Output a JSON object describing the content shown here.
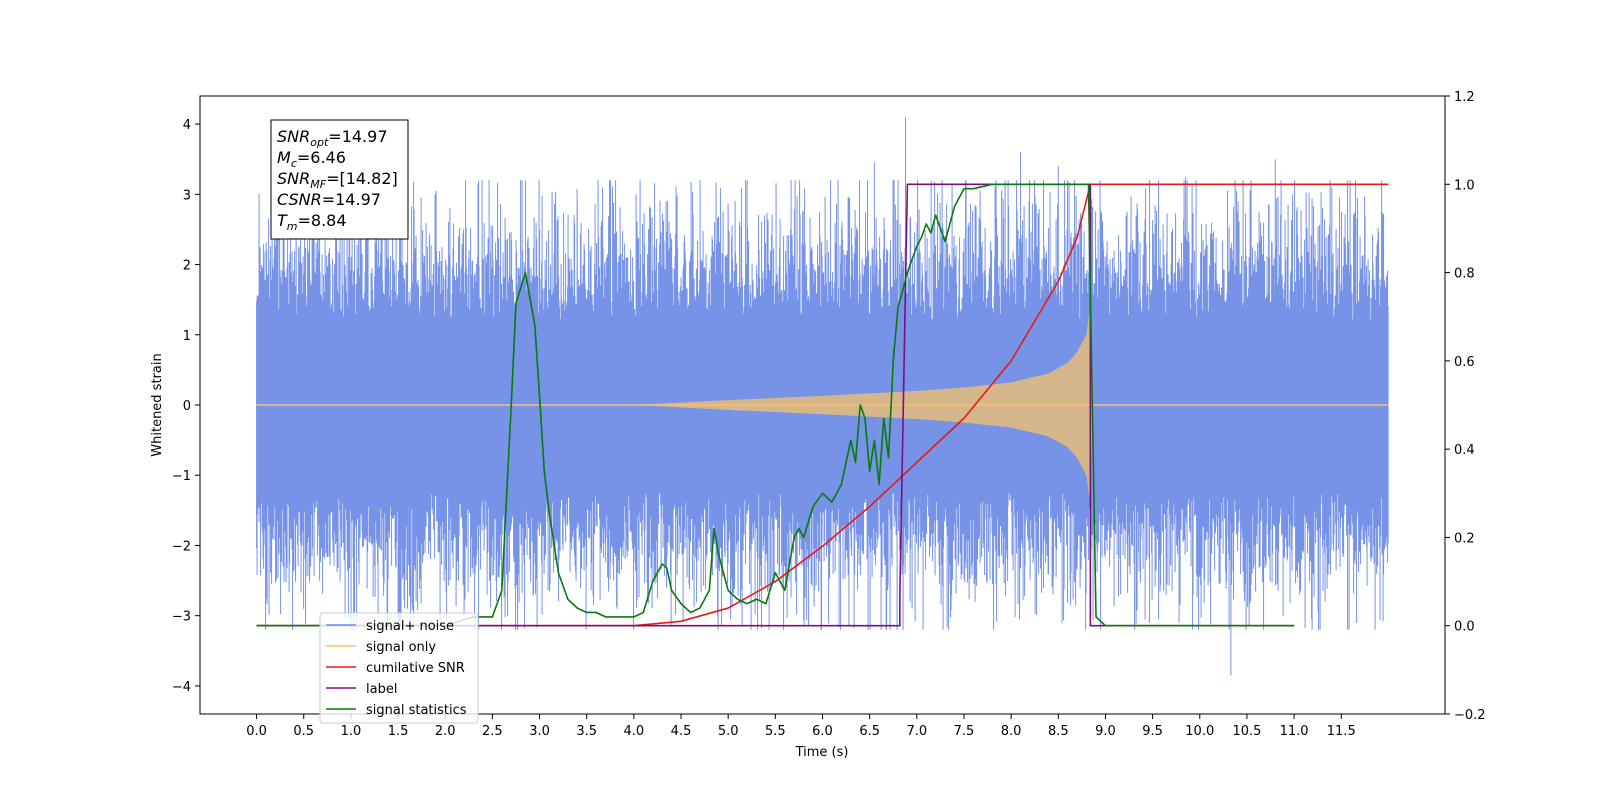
{
  "chart_data": {
    "type": "line",
    "xlabel": "Time (s)",
    "ylabel": "Whitened strain",
    "xlim": [
      -0.6,
      12.6
    ],
    "ylim": [
      -4.4,
      4.4
    ],
    "y2lim": [
      -0.2,
      1.2
    ],
    "x_ticks": [
      0.0,
      0.5,
      1.0,
      1.5,
      2.0,
      2.5,
      3.0,
      3.5,
      4.0,
      4.5,
      5.0,
      5.5,
      6.0,
      6.5,
      7.0,
      7.5,
      8.0,
      8.5,
      9.0,
      9.5,
      10.0,
      10.5,
      11.0,
      11.5
    ],
    "x_tick_labels": [
      "0.0",
      "0.5",
      "1.0",
      "1.5",
      "2.0",
      "2.5",
      "3.0",
      "3.5",
      "4.0",
      "4.5",
      "5.0",
      "5.5",
      "6.0",
      "6.5",
      "7.0",
      "7.5",
      "8.0",
      "8.5",
      "9.0",
      "9.5",
      "10.0",
      "10.5",
      "11.0",
      "11.5"
    ],
    "y_ticks": [
      -4,
      -3,
      -2,
      -1,
      0,
      1,
      2,
      3,
      4
    ],
    "y_tick_labels": [
      "−4",
      "−3",
      "−2",
      "−1",
      "0",
      "1",
      "2",
      "3",
      "4"
    ],
    "y2_ticks": [
      -0.2,
      0.0,
      0.2,
      0.4,
      0.6,
      0.8,
      1.0,
      1.2
    ],
    "y2_tick_labels": [
      "−0.2",
      "0.0",
      "0.2",
      "0.4",
      "0.6",
      "0.8",
      "1.0",
      "1.2"
    ],
    "grid": false,
    "legend_position": "lower-left",
    "annotation": [
      {
        "base": "SNR",
        "sub": "opt",
        "value": "=14.97"
      },
      {
        "base": "M",
        "sub": "c",
        "value": "=6.46"
      },
      {
        "base": "SNR",
        "sub": "MF",
        "value": "=[14.82]"
      },
      {
        "base": "CSNR",
        "sub": "",
        "value": "=14.97"
      },
      {
        "base": "T",
        "sub": "m",
        "value": "=8.84"
      }
    ],
    "series": [
      {
        "name": "signal+ noise",
        "axis": "left",
        "color": "#6f8de6",
        "kind": "noise_band",
        "x_range": [
          0.0,
          12.0
        ],
        "typical_amplitude": 1.6,
        "max_peak": 4.1,
        "min_peak": -3.9
      },
      {
        "name": "signal only",
        "axis": "left",
        "color": "#f5c26b",
        "kind": "chirp_envelope",
        "x_range": [
          0.0,
          12.0
        ],
        "start": 4.0,
        "merger": 8.84,
        "envelope_points": [
          [
            4.0,
            0.0
          ],
          [
            5.0,
            0.07
          ],
          [
            6.0,
            0.13
          ],
          [
            7.0,
            0.2
          ],
          [
            7.5,
            0.25
          ],
          [
            8.0,
            0.32
          ],
          [
            8.4,
            0.45
          ],
          [
            8.6,
            0.6
          ],
          [
            8.7,
            0.75
          ],
          [
            8.8,
            1.0
          ],
          [
            8.84,
            1.4
          ],
          [
            8.86,
            0.0
          ]
        ]
      },
      {
        "name": "cumilative SNR",
        "axis": "right",
        "color": "#e8191a",
        "x": [
          0.0,
          4.0,
          4.5,
          5.0,
          5.5,
          6.0,
          6.5,
          7.0,
          7.5,
          8.0,
          8.5,
          8.7,
          8.84,
          8.85,
          12.0
        ],
        "y": [
          0.0,
          0.0,
          0.01,
          0.04,
          0.1,
          0.18,
          0.27,
          0.37,
          0.47,
          0.6,
          0.78,
          0.88,
          1.0,
          1.0,
          1.0
        ]
      },
      {
        "name": "label",
        "axis": "right",
        "color": "#7b0f7c",
        "x": [
          0.0,
          6.82,
          6.82,
          6.9,
          8.84,
          8.84,
          11.0
        ],
        "y": [
          0.0,
          0.0,
          0.07,
          1.0,
          1.0,
          0.0,
          0.0
        ]
      },
      {
        "name": "signal statistics",
        "axis": "right",
        "color": "#0a7a0a",
        "x": [
          0.0,
          2.0,
          2.3,
          2.5,
          2.6,
          2.7,
          2.75,
          2.85,
          2.95,
          3.0,
          3.05,
          3.1,
          3.15,
          3.2,
          3.3,
          3.4,
          3.5,
          3.6,
          3.7,
          3.8,
          4.0,
          4.1,
          4.2,
          4.3,
          4.35,
          4.4,
          4.5,
          4.6,
          4.7,
          4.8,
          4.85,
          4.9,
          5.0,
          5.1,
          5.2,
          5.3,
          5.4,
          5.5,
          5.6,
          5.7,
          5.75,
          5.8,
          5.9,
          6.0,
          6.1,
          6.2,
          6.3,
          6.35,
          6.4,
          6.45,
          6.5,
          6.55,
          6.6,
          6.65,
          6.7,
          6.75,
          6.8,
          6.9,
          7.0,
          7.05,
          7.1,
          7.15,
          7.2,
          7.3,
          7.4,
          7.5,
          7.6,
          7.8,
          8.0,
          8.4,
          8.82,
          8.9,
          9.0,
          11.0
        ],
        "y": [
          0.0,
          0.0,
          0.02,
          0.02,
          0.08,
          0.5,
          0.73,
          0.8,
          0.68,
          0.52,
          0.35,
          0.26,
          0.19,
          0.12,
          0.06,
          0.04,
          0.03,
          0.03,
          0.02,
          0.02,
          0.02,
          0.03,
          0.1,
          0.14,
          0.13,
          0.08,
          0.05,
          0.03,
          0.04,
          0.08,
          0.22,
          0.16,
          0.08,
          0.06,
          0.05,
          0.06,
          0.05,
          0.12,
          0.08,
          0.2,
          0.22,
          0.2,
          0.27,
          0.3,
          0.28,
          0.32,
          0.42,
          0.37,
          0.5,
          0.47,
          0.35,
          0.42,
          0.32,
          0.47,
          0.38,
          0.6,
          0.72,
          0.8,
          0.86,
          0.88,
          0.91,
          0.89,
          0.93,
          0.87,
          0.95,
          0.99,
          0.99,
          1.0,
          1.0,
          1.0,
          1.0,
          0.02,
          0.0,
          0.0
        ]
      }
    ]
  },
  "legend": {
    "items": [
      {
        "label": "signal+ noise",
        "color": "#6f8de6"
      },
      {
        "label": "signal only",
        "color": "#f5c26b"
      },
      {
        "label": "cumilative SNR",
        "color": "#e8191a"
      },
      {
        "label": "label",
        "color": "#7b0f7c"
      },
      {
        "label": "signal statistics",
        "color": "#0a7a0a"
      }
    ]
  }
}
